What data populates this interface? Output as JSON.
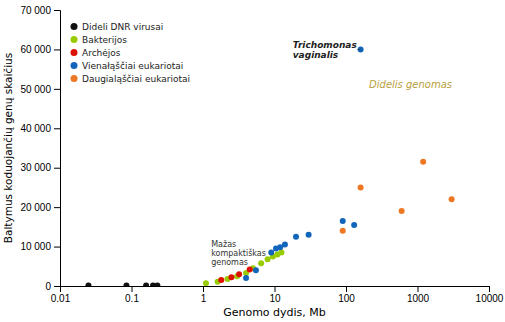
{
  "chart_data": {
    "type": "scatter",
    "xlabel": "Genomo dydis, Mb",
    "ylabel": "Baltymus koduojančių genų skaičius",
    "log": "x",
    "xlim": [
      0.01,
      10000
    ],
    "ylim": [
      0,
      70000
    ],
    "xticks": [
      0.01,
      0.1,
      1,
      10,
      100,
      1000,
      10000
    ],
    "yticks": [
      0,
      {
        "value": 10000,
        "label": "10 000"
      },
      {
        "value": 20000,
        "label": "20 000"
      },
      {
        "value": 30000,
        "label": "30 000"
      },
      {
        "value": 40000,
        "label": "40 000"
      },
      {
        "value": 50000,
        "label": "50 000"
      },
      {
        "value": 60000,
        "label": "60 000"
      },
      {
        "value": 70000,
        "label": "70 000"
      }
    ],
    "grid": false,
    "legend": "upper left",
    "series": [
      {
        "name": "Dideli DNR virusai",
        "color": "#111111",
        "x": [
          0.025,
          0.085,
          0.16,
          0.2,
          0.23
        ],
        "values": [
          100,
          100,
          100,
          100,
          100
        ]
      },
      {
        "name": "Bakterijos",
        "color": "#99cc00",
        "x": [
          1.1,
          1.6,
          2.2,
          3.0,
          4.0,
          5.0,
          6.5,
          8.0,
          9.5,
          11.0,
          12.5
        ],
        "values": [
          700,
          1100,
          1800,
          2500,
          3300,
          4500,
          5800,
          6800,
          7500,
          8000,
          8500
        ]
      },
      {
        "name": "Archėjos",
        "color": "#dd1100",
        "x": [
          1.8,
          2.5,
          3.2,
          4.5
        ],
        "values": [
          1500,
          2200,
          3000,
          4200
        ]
      },
      {
        "name": "Vienałąščiai eukariotai",
        "color": "#1166bb",
        "x": [
          4.0,
          5.5,
          9.0,
          10.5,
          12.0,
          14.0,
          20.0,
          30.0,
          90.0,
          130.0,
          160.0
        ],
        "values": [
          2000,
          4000,
          8500,
          9500,
          9800,
          10500,
          12500,
          13000,
          16500,
          15500,
          60000
        ]
      },
      {
        "name": "Daugialąščiai eukariotai",
        "color": "#ee7722",
        "x": [
          90.0,
          160.0,
          600.0,
          1200.0,
          3000.0
        ],
        "values": [
          14000,
          25000,
          19000,
          31500,
          22000
        ]
      }
    ],
    "annotations": [
      {
        "text": "Trichomonas\nvaginalis",
        "x": 18.0,
        "y": 60000,
        "target_x": 160.0,
        "target_y": 60000
      },
      {
        "text": "Mažas\nkompaktiškas\ngenomas",
        "x": 1.3,
        "y": 11500
      },
      {
        "text": "Didelis genomas",
        "x": 800.0,
        "y": 51000
      }
    ]
  }
}
